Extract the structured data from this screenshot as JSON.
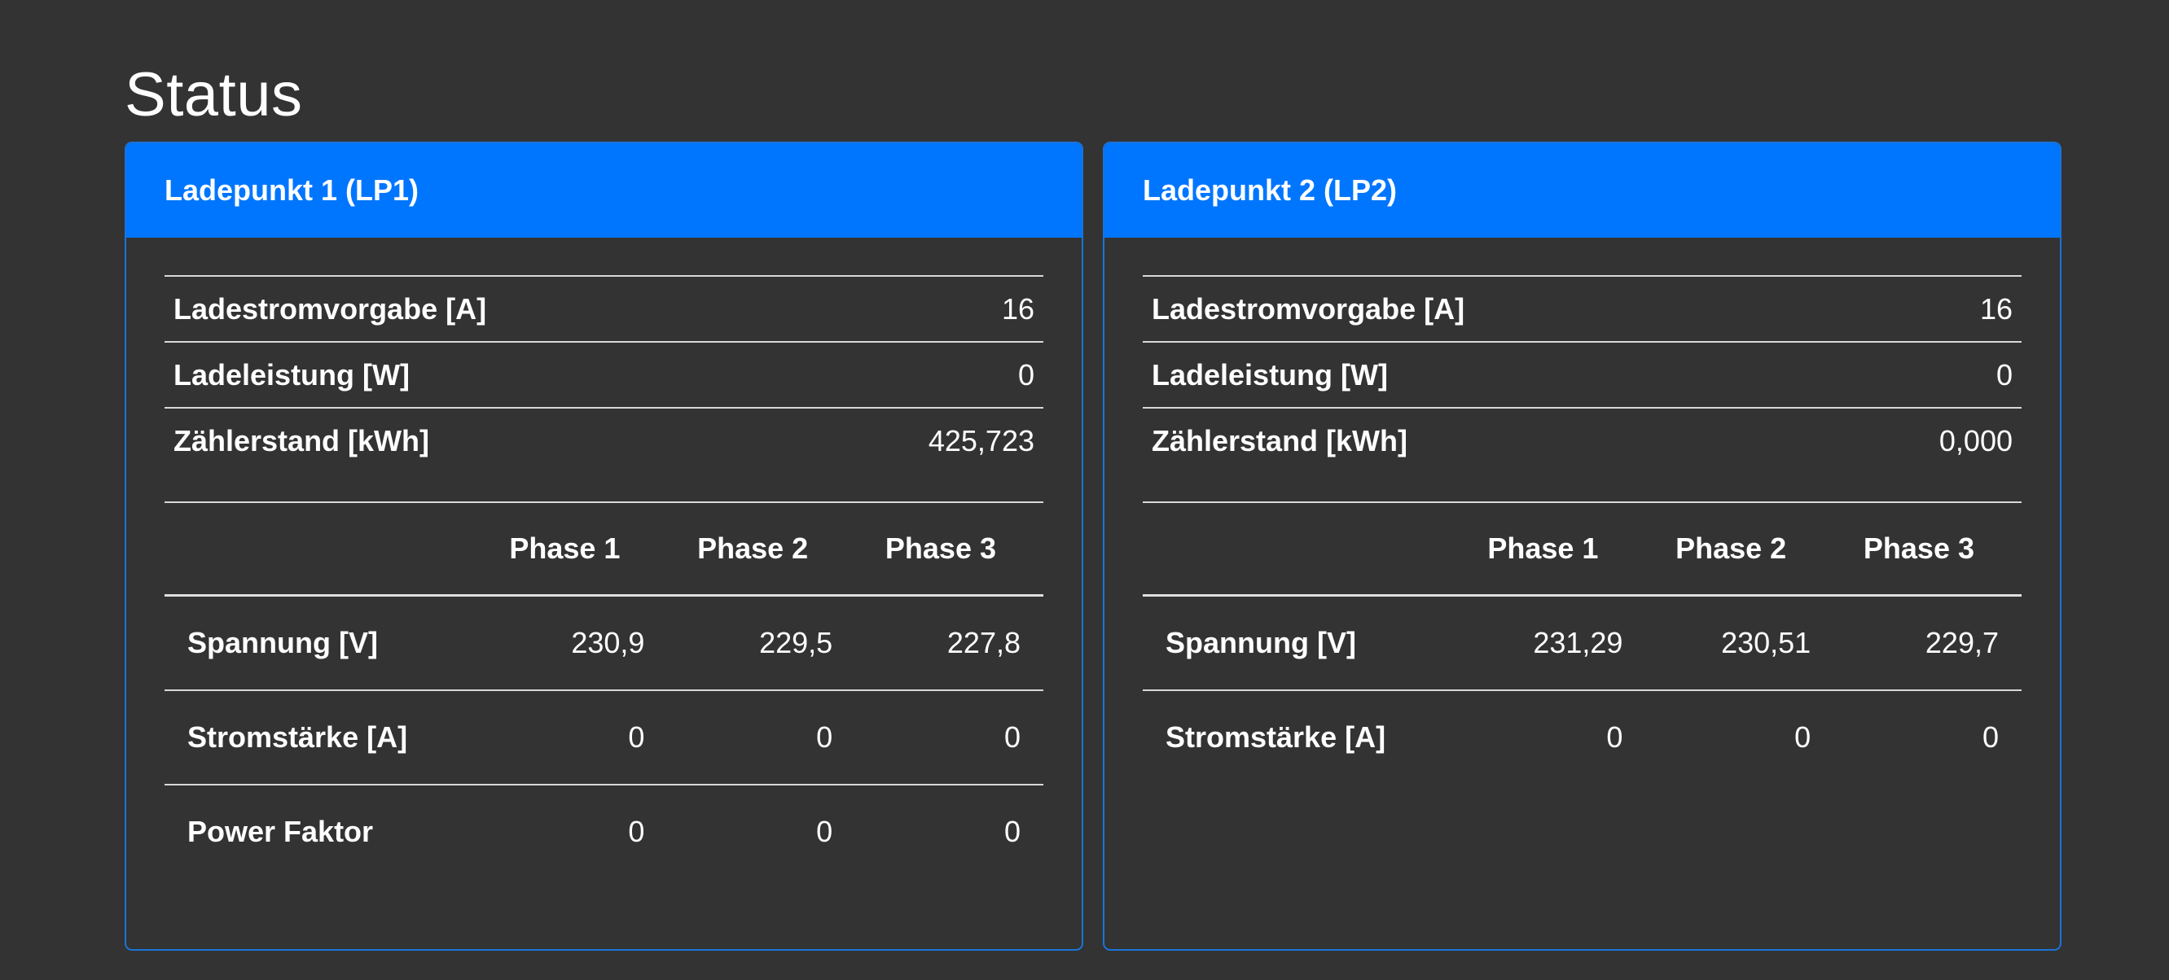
{
  "page": {
    "title": "Status"
  },
  "phase_headers": [
    "Phase 1",
    "Phase 2",
    "Phase 3"
  ],
  "cards": [
    {
      "title": "Ladepunkt 1 (LP1)",
      "summary": [
        {
          "label": "Ladestromvorgabe [A]",
          "value": "16"
        },
        {
          "label": "Ladeleistung [W]",
          "value": "0"
        },
        {
          "label": "Zählerstand [kWh]",
          "value": "425,723"
        }
      ],
      "phase_rows": [
        {
          "label": "Spannung [V]",
          "values": [
            "230,9",
            "229,5",
            "227,8"
          ]
        },
        {
          "label": "Stromstärke [A]",
          "values": [
            "0",
            "0",
            "0"
          ]
        },
        {
          "label": "Power Faktor",
          "values": [
            "0",
            "0",
            "0"
          ]
        }
      ]
    },
    {
      "title": "Ladepunkt 2 (LP2)",
      "summary": [
        {
          "label": "Ladestromvorgabe [A]",
          "value": "16"
        },
        {
          "label": "Ladeleistung [W]",
          "value": "0"
        },
        {
          "label": "Zählerstand [kWh]",
          "value": "0,000"
        }
      ],
      "phase_rows": [
        {
          "label": "Spannung [V]",
          "values": [
            "231,29",
            "230,51",
            "229,7"
          ]
        },
        {
          "label": "Stromstärke [A]",
          "values": [
            "0",
            "0",
            "0"
          ]
        }
      ]
    }
  ],
  "colors": {
    "background": "#333333",
    "card_header": "#0076ff",
    "card_border": "#1a73d9",
    "text": "#ffffff"
  }
}
